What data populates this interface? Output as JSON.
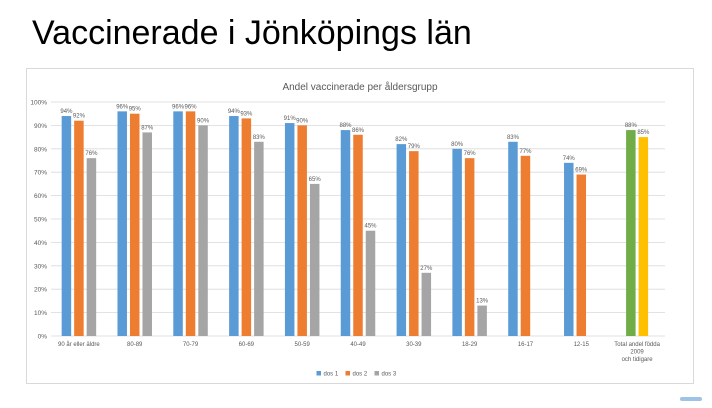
{
  "slide": {
    "title": "Vaccinerade i Jönköpings län"
  },
  "chart_data": {
    "type": "bar",
    "title": "Andel vaccinerade per åldersgrupp",
    "xlabel": "",
    "ylabel": "",
    "ylim": [
      0,
      100
    ],
    "yticks": [
      "0%",
      "10%",
      "20%",
      "30%",
      "40%",
      "50%",
      "60%",
      "70%",
      "80%",
      "90%",
      "100%"
    ],
    "grid": true,
    "legend_position": "bottom",
    "categories": [
      [
        "90 år eller äldre"
      ],
      [
        "80-89"
      ],
      [
        "70-79"
      ],
      [
        "60-69"
      ],
      [
        "50-59"
      ],
      [
        "40-49"
      ],
      [
        "30-39"
      ],
      [
        "18-29"
      ],
      [
        "16-17"
      ],
      [
        "12-15"
      ],
      [
        "Total andel födda",
        "2009",
        "och tidigare"
      ]
    ],
    "series": [
      {
        "name": "dos 1",
        "color": "#5b9bd5",
        "values": [
          94,
          96,
          96,
          94,
          91,
          88,
          82,
          80,
          83,
          74,
          null
        ]
      },
      {
        "name": "dos 2",
        "color": "#ed7d31",
        "values": [
          92,
          95,
          96,
          93,
          90,
          86,
          79,
          76,
          77,
          69,
          null
        ]
      },
      {
        "name": "dos 3",
        "color": "#a5a5a5",
        "values": [
          76,
          87,
          90,
          83,
          65,
          45,
          27,
          13,
          null,
          null,
          null
        ]
      }
    ],
    "totals": {
      "category_index": 10,
      "values": [
        88,
        85
      ],
      "colors": [
        "#70ad47",
        "#ffc000"
      ]
    },
    "label_suffix": "%"
  }
}
